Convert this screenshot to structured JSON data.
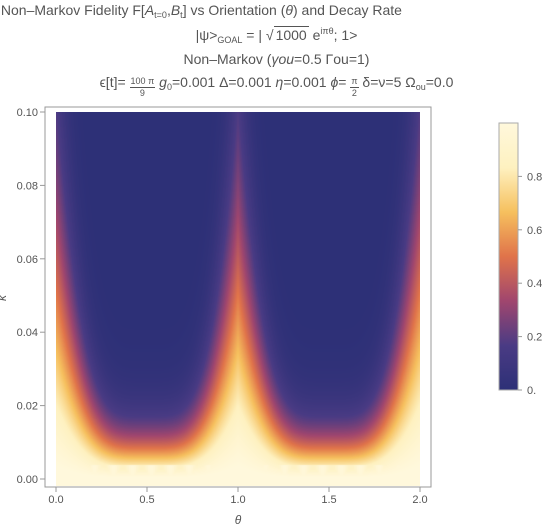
{
  "chart_data": {
    "type": "heatmap",
    "title_lines": [
      {
        "parts": [
          "x Non–Markov Fidelity F[",
          "A",
          "t=0",
          ",",
          "B",
          "t",
          "] vs Orientation (",
          "θ",
          ") and Decay Rate"
        ]
      },
      {
        "parts": [
          "|ψ>",
          "GOAL",
          " = | ",
          "1000",
          " e",
          "iπθ",
          "; 1>"
        ]
      },
      {
        "parts": [
          "Non–Markov (",
          "γou",
          "=0.5 Γou=1)"
        ]
      },
      {
        "parts": [
          "ϵ[t]= ",
          "100 π",
          "9",
          " g",
          "0",
          "=0.001 Δ=0.001 ",
          "η",
          "=0.001 ",
          "ϕ",
          "= ",
          "π",
          "2",
          " δ=ν=5 Ω",
          "ou",
          "=0.0"
        ]
      }
    ],
    "xlabel": "θ",
    "ylabel": "κ",
    "xlim": [
      0.0,
      2.0
    ],
    "ylim": [
      0.0,
      0.1
    ],
    "x_ticks": [
      "0.0",
      "0.5",
      "1.0",
      "1.5",
      "2.0"
    ],
    "y_ticks": [
      "0.00",
      "0.02",
      "0.04",
      "0.06",
      "0.08",
      "0.10"
    ],
    "colorbar": {
      "range": [
        0.0,
        1.0
      ],
      "ticks": [
        "0.",
        "0.2",
        "0.4",
        "0.6",
        "0.8"
      ],
      "colors": [
        "#2d3077",
        "#4a3b84",
        "#a0466e",
        "#e0734a",
        "#f6c05e",
        "#fef1c0",
        "#fff8dc"
      ]
    },
    "description_values": {
      "peak_ridge_theta": [
        0.0,
        1.0,
        2.0
      ],
      "fidelity_low_kappa": 1.0,
      "fidelity_high_kappa_far": 0.0
    },
    "colors": {
      "dark": "#2a2e78",
      "light": "#fffbe6"
    }
  }
}
